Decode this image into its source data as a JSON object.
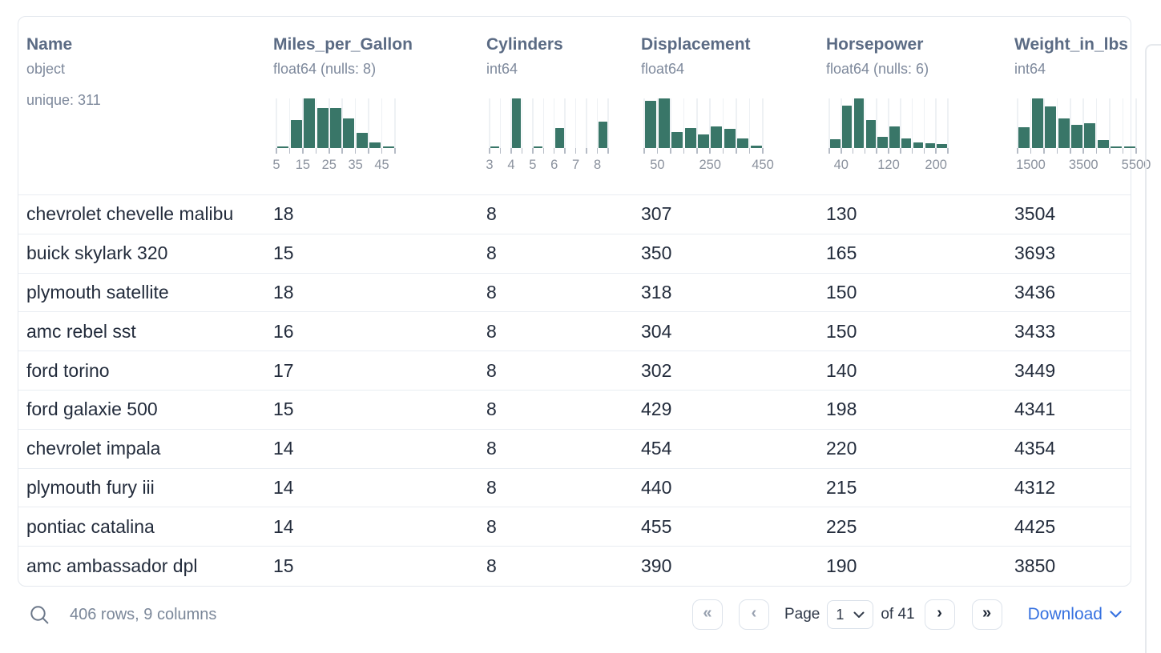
{
  "colors": {
    "histogram_bar": "#397668",
    "link_blue": "#3671e0"
  },
  "columns": [
    {
      "name": "Name",
      "type": "object",
      "note": "unique: 311"
    },
    {
      "name": "Miles_per_Gallon",
      "type": "float64 (nulls: 8)",
      "histogram": {
        "bars": [
          2,
          57,
          100,
          80,
          80,
          60,
          31,
          12,
          2
        ],
        "labels": [
          {
            "text": "5",
            "at": 0
          },
          {
            "text": "15",
            "at": 2
          },
          {
            "text": "25",
            "at": 4
          },
          {
            "text": "35",
            "at": 6
          },
          {
            "text": "45",
            "at": 8
          }
        ]
      }
    },
    {
      "name": "Cylinders",
      "type": "int64",
      "histogram": {
        "bars": [
          3,
          0,
          100,
          0,
          2,
          0,
          41,
          0,
          0,
          0,
          53
        ],
        "labels": [
          {
            "text": "3",
            "at": 0
          },
          {
            "text": "4",
            "at": 2
          },
          {
            "text": "5",
            "at": 4
          },
          {
            "text": "6",
            "at": 6
          },
          {
            "text": "7",
            "at": 8
          },
          {
            "text": "8",
            "at": 10
          }
        ]
      }
    },
    {
      "name": "Displacement",
      "type": "float64",
      "histogram": {
        "bars": [
          95,
          100,
          33,
          40,
          28,
          43,
          38,
          20,
          5
        ],
        "labels": [
          {
            "text": "50",
            "at": 1
          },
          {
            "text": "250",
            "at": 5
          },
          {
            "text": "450",
            "at": 9
          }
        ]
      }
    },
    {
      "name": "Horsepower",
      "type": "float64 (nulls: 6)",
      "histogram": {
        "bars": [
          17,
          85,
          100,
          57,
          23,
          43,
          20,
          12,
          9,
          8
        ],
        "labels": [
          {
            "text": "40",
            "at": 1
          },
          {
            "text": "120",
            "at": 5
          },
          {
            "text": "200",
            "at": 9
          }
        ]
      }
    },
    {
      "name": "Weight_in_lbs",
      "type": "int64",
      "histogram": {
        "bars": [
          42,
          100,
          84,
          60,
          46,
          50,
          16,
          3,
          2
        ],
        "labels": [
          {
            "text": "1500",
            "at": 1
          },
          {
            "text": "3500",
            "at": 5
          },
          {
            "text": "5500",
            "at": 9
          }
        ]
      }
    }
  ],
  "rows": [
    [
      "chevrolet chevelle malibu",
      "18",
      "8",
      "307",
      "130",
      "3504"
    ],
    [
      "buick skylark 320",
      "15",
      "8",
      "350",
      "165",
      "3693"
    ],
    [
      "plymouth satellite",
      "18",
      "8",
      "318",
      "150",
      "3436"
    ],
    [
      "amc rebel sst",
      "16",
      "8",
      "304",
      "150",
      "3433"
    ],
    [
      "ford torino",
      "17",
      "8",
      "302",
      "140",
      "3449"
    ],
    [
      "ford galaxie 500",
      "15",
      "8",
      "429",
      "198",
      "4341"
    ],
    [
      "chevrolet impala",
      "14",
      "8",
      "454",
      "220",
      "4354"
    ],
    [
      "plymouth fury iii",
      "14",
      "8",
      "440",
      "215",
      "4312"
    ],
    [
      "pontiac catalina",
      "14",
      "8",
      "455",
      "225",
      "4425"
    ],
    [
      "amc ambassador dpl",
      "15",
      "8",
      "390",
      "190",
      "3850"
    ]
  ],
  "footer": {
    "summary": "406 rows, 9 columns",
    "page_label": "Page",
    "page_value": "1",
    "of_label": "of 41",
    "download_label": "Download",
    "glyphs": {
      "first": "«",
      "prev": "‹",
      "next": "›",
      "last": "»"
    }
  }
}
